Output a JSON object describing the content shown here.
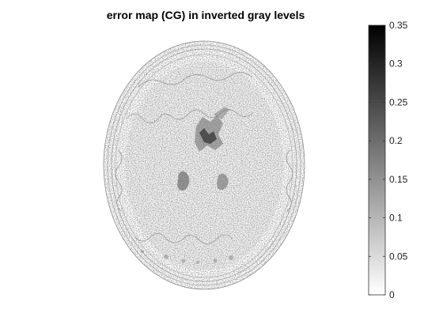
{
  "figure": {
    "title": "error map (CG) in inverted gray levels"
  },
  "colorbar": {
    "min": 0,
    "max": 0.35,
    "colormap": "inverted-gray",
    "low_color": "#ffffff",
    "high_color": "#000000",
    "ticks": [
      "0",
      "0.05",
      "0.1",
      "0.15",
      "0.2",
      "0.25",
      "0.3",
      "0.35"
    ]
  },
  "image": {
    "subject": "axial brain MRI slice error map",
    "icon": "brain-scan-icon"
  }
}
